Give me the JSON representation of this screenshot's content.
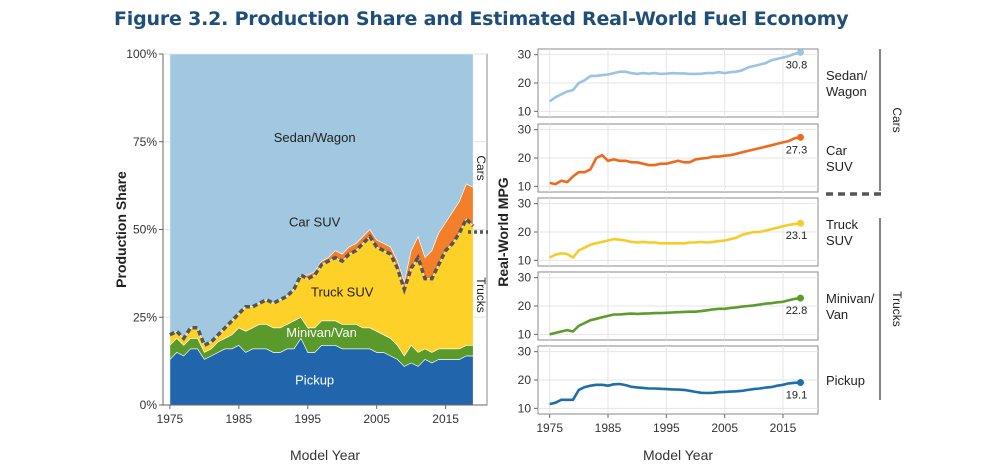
{
  "title": "Figure 3.2. Production Share and Estimated Real-World Fuel Economy",
  "chart_data": [
    {
      "type": "area",
      "title": "",
      "xlabel": "Model Year",
      "ylabel": "Production Share",
      "xlim": [
        1974,
        2021
      ],
      "ylim": [
        0,
        100
      ],
      "xticks": [
        "1975",
        "1985",
        "1995",
        "2005",
        "2015"
      ],
      "yticks": [
        "0%",
        "25%",
        "50%",
        "75%",
        "100%"
      ],
      "x": [
        1975,
        1976,
        1977,
        1978,
        1979,
        1980,
        1981,
        1982,
        1983,
        1984,
        1985,
        1986,
        1987,
        1988,
        1989,
        1990,
        1991,
        1992,
        1993,
        1994,
        1995,
        1996,
        1997,
        1998,
        1999,
        2000,
        2001,
        2002,
        2003,
        2004,
        2005,
        2006,
        2007,
        2008,
        2009,
        2010,
        2011,
        2012,
        2013,
        2014,
        2015,
        2016,
        2017,
        2018,
        2019
      ],
      "series": [
        {
          "name": "Pickup",
          "color": "#2166ac",
          "cumulative": [
            13,
            15,
            14,
            16,
            16,
            13,
            14,
            15,
            16,
            16,
            17,
            15,
            16,
            16,
            16,
            15,
            15,
            16,
            16,
            19,
            15,
            15,
            17,
            17,
            17,
            16,
            16,
            16,
            16,
            16,
            15,
            15,
            14,
            13,
            11,
            12,
            11,
            13,
            12,
            13,
            13,
            13,
            13,
            14,
            14
          ]
        },
        {
          "name": "Minivan/Van",
          "color": "#5a9a2a",
          "cumulative": [
            17,
            19,
            17,
            19,
            19,
            15,
            16,
            18,
            19,
            20,
            22,
            21,
            22,
            23,
            23,
            22,
            22,
            23,
            24,
            25,
            22,
            22,
            24,
            24,
            24,
            23,
            23,
            23,
            22,
            22,
            21,
            20,
            19,
            17,
            14,
            17,
            15,
            16,
            15,
            16,
            16,
            16,
            16,
            17,
            17
          ]
        },
        {
          "name": "Truck SUV",
          "color": "#fdd127",
          "cumulative": [
            20,
            21,
            19,
            22,
            22,
            17,
            18,
            20,
            22,
            24,
            26,
            28,
            28,
            29,
            30,
            29,
            30,
            31,
            33,
            37,
            36,
            37,
            40,
            41,
            42,
            41,
            43,
            44,
            46,
            48,
            45,
            44,
            43,
            39,
            33,
            39,
            42,
            36,
            36,
            40,
            44,
            46,
            49,
            53,
            51
          ]
        },
        {
          "name": "Car SUV",
          "color": "#f47f2b",
          "cumulative": [
            20,
            21,
            19,
            22,
            22,
            17,
            18,
            20,
            22,
            24,
            26,
            28,
            28,
            29,
            30,
            29,
            30,
            31,
            33,
            37,
            37,
            38,
            41,
            42,
            44,
            43,
            45,
            46,
            48,
            50,
            47,
            46,
            45,
            41,
            35,
            44,
            48,
            42,
            44,
            49,
            52,
            55,
            58,
            63,
            62
          ]
        },
        {
          "name": "Sedan/Wagon",
          "color": "#a1c8e0",
          "cumulative": [
            100,
            100,
            100,
            100,
            100,
            100,
            100,
            100,
            100,
            100,
            100,
            100,
            100,
            100,
            100,
            100,
            100,
            100,
            100,
            100,
            100,
            100,
            100,
            100,
            100,
            100,
            100,
            100,
            100,
            100,
            100,
            100,
            100,
            100,
            100,
            100,
            100,
            100,
            100,
            100,
            100,
            100,
            100,
            100,
            100
          ]
        }
      ],
      "area_labels": [
        "Sedan/Wagon",
        "Car SUV",
        "Truck SUV",
        "Minivan/Van",
        "Pickup"
      ],
      "side_labels": [
        "Cars",
        "Trucks"
      ],
      "cars_trucks_divider": "dashed"
    },
    {
      "type": "line",
      "title": "",
      "xlabel": "Model Year",
      "ylabel": "Real-World MPG",
      "xlim": [
        1973,
        2021
      ],
      "ylim": [
        8,
        32
      ],
      "xticks": [
        "1975",
        "1985",
        "1995",
        "2005",
        "2015"
      ],
      "yticks": [
        "10",
        "20",
        "30"
      ],
      "x": [
        1975,
        1976,
        1977,
        1978,
        1979,
        1980,
        1981,
        1982,
        1983,
        1984,
        1985,
        1986,
        1987,
        1988,
        1989,
        1990,
        1991,
        1992,
        1993,
        1994,
        1995,
        1996,
        1997,
        1998,
        1999,
        2000,
        2001,
        2002,
        2003,
        2004,
        2005,
        2006,
        2007,
        2008,
        2009,
        2010,
        2011,
        2012,
        2013,
        2014,
        2015,
        2016,
        2017,
        2018
      ],
      "panels": [
        {
          "name": "Sedan/Wagon",
          "label_lines": [
            "Sedan/",
            "Wagon"
          ],
          "color": "#9cc3e2",
          "end_label": "30.8",
          "values": [
            13.5,
            15,
            16,
            17,
            17.5,
            20,
            21,
            22.5,
            22.5,
            22.8,
            23,
            23.5,
            24,
            24,
            23.5,
            23.2,
            23.5,
            23.3,
            23.5,
            23.2,
            23.3,
            23.5,
            23.4,
            23.4,
            23.2,
            23.2,
            23.3,
            23.5,
            23.5,
            23.8,
            23.5,
            23.8,
            24,
            24.5,
            25.5,
            26,
            26.5,
            27,
            28,
            28.5,
            29,
            29.5,
            30.3,
            30.8
          ]
        },
        {
          "name": "Car SUV",
          "label_lines": [
            "Car",
            "SUV"
          ],
          "color": "#ee6a1e",
          "end_label": "27.3",
          "values": [
            11.2,
            10.8,
            12,
            11.5,
            13.5,
            15,
            15,
            16,
            20,
            21,
            19,
            19.5,
            19,
            19,
            18.5,
            18.5,
            18,
            17.5,
            17.5,
            18,
            18,
            18.5,
            19,
            18.5,
            18.5,
            19.5,
            19.8,
            20,
            20.5,
            20.5,
            20.8,
            21,
            21.5,
            22,
            22.5,
            23,
            23.5,
            24,
            24.5,
            25,
            25.5,
            26,
            27,
            27.3
          ]
        },
        {
          "name": "Truck SUV",
          "label_lines": [
            "Truck",
            "SUV"
          ],
          "color": "#f5cd2a",
          "end_label": "23.1",
          "values": [
            11,
            12,
            12.5,
            12.2,
            11,
            13.5,
            14.5,
            15.5,
            16,
            16.5,
            17,
            17.5,
            17.3,
            17,
            16.5,
            16.3,
            16.5,
            16.3,
            16.3,
            16,
            16,
            16,
            16,
            16,
            16.3,
            16.3,
            16.5,
            16.3,
            16.5,
            16.8,
            17,
            17.5,
            18,
            19,
            19.5,
            20,
            20,
            20.5,
            21,
            21.5,
            22,
            22.5,
            22.8,
            23.1
          ]
        },
        {
          "name": "Minivan/Van",
          "label_lines": [
            "Minivan/",
            "Van"
          ],
          "color": "#5c9b2d",
          "end_label": "22.8",
          "values": [
            10,
            10.5,
            11,
            11.5,
            11,
            13,
            14,
            15,
            15.5,
            16,
            16.5,
            17,
            17,
            17.2,
            17.3,
            17.2,
            17.3,
            17.4,
            17.5,
            17.5,
            17.6,
            17.7,
            17.8,
            17.9,
            18,
            18,
            18.2,
            18.5,
            18.8,
            19,
            19,
            19.3,
            19.5,
            19.8,
            20,
            20.2,
            20.5,
            20.8,
            21,
            21.3,
            21.5,
            22,
            22.5,
            22.8
          ]
        },
        {
          "name": "Pickup",
          "label_lines": [
            "Pickup"
          ],
          "color": "#1f6eac",
          "end_label": "19.1",
          "values": [
            11.5,
            12,
            13,
            13,
            13,
            16.5,
            17.5,
            18,
            18.3,
            18.3,
            18,
            18.5,
            18.6,
            18.2,
            17.6,
            17.4,
            17.2,
            17,
            17,
            16.9,
            16.8,
            16.7,
            16.6,
            16.5,
            16.2,
            15.8,
            15.5,
            15.4,
            15.5,
            15.7,
            15.8,
            15.9,
            16,
            16.2,
            16.5,
            16.8,
            17,
            17.3,
            17.5,
            18,
            18.3,
            18.8,
            19,
            19.1
          ]
        }
      ],
      "side_labels": [
        "Cars",
        "Trucks"
      ]
    }
  ]
}
